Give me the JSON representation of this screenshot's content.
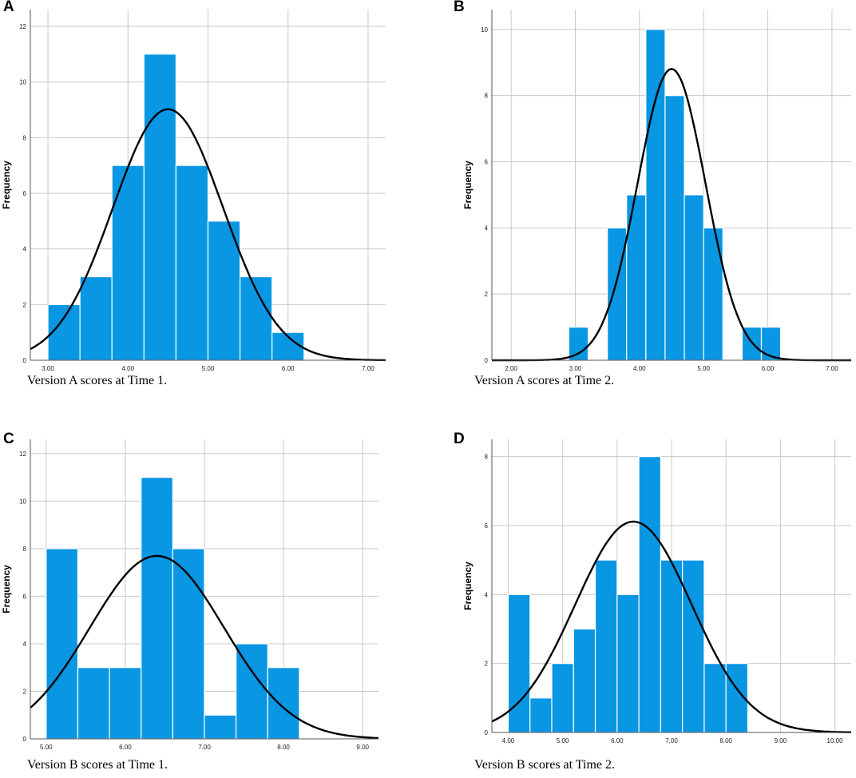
{
  "chart_data": [
    {
      "type": "bar",
      "panel_label": "A",
      "caption": "Version A scores at Time 1.",
      "ylabel": "Frequency",
      "xlabel": "",
      "bin_width": 0.4,
      "x_bin_starts": [
        3.0,
        3.4,
        3.8,
        4.2,
        4.6,
        5.0,
        5.4,
        5.8
      ],
      "values": [
        2,
        3,
        7,
        11,
        7,
        5,
        3,
        1
      ],
      "xlim": [
        2.78,
        7.22
      ],
      "ylim": [
        0,
        12.6
      ],
      "xticks": [
        3,
        4,
        5,
        6,
        7
      ],
      "xtick_labels": [
        "3.00",
        "4.00",
        "5.00",
        "6.00",
        "7.00"
      ],
      "yticks": [
        0,
        2,
        4,
        6,
        8,
        10,
        12
      ],
      "ytick_labels": [
        "0",
        "2",
        "4",
        "6",
        "8",
        "10",
        "12"
      ],
      "normal_curve": {
        "mean": 4.5,
        "sd": 0.69,
        "n": 39
      }
    },
    {
      "type": "bar",
      "panel_label": "B",
      "caption": "Version A scores at Time 2.",
      "ylabel": "Frequency",
      "xlabel": "",
      "bin_width": 0.3,
      "x_bin_starts": [
        2.9,
        3.2,
        3.5,
        3.8,
        4.1,
        4.4,
        4.7,
        5.0,
        5.3,
        5.6,
        5.9,
        6.2
      ],
      "values": [
        1,
        0,
        4,
        5,
        10,
        8,
        5,
        4,
        0,
        1,
        1,
        0
      ],
      "xlim": [
        1.7,
        7.3
      ],
      "ylim": [
        0,
        10.6
      ],
      "xticks": [
        2,
        3,
        4,
        5,
        6,
        7
      ],
      "xtick_labels": [
        "2.00",
        "3.00",
        "4.00",
        "5.00",
        "6.00",
        "7.00"
      ],
      "yticks": [
        0,
        2,
        4,
        6,
        8,
        10
      ],
      "ytick_labels": [
        "0",
        "2",
        "4",
        "6",
        "8",
        "10"
      ],
      "normal_curve": {
        "mean": 4.5,
        "sd": 0.53,
        "n": 39
      }
    },
    {
      "type": "bar",
      "panel_label": "C",
      "caption": "Version B scores at Time 1.",
      "ylabel": "Frequency",
      "xlabel": "",
      "bin_width": 0.4,
      "x_bin_starts": [
        5.0,
        5.4,
        5.8,
        6.2,
        6.6,
        7.0,
        7.4,
        7.8
      ],
      "values": [
        8,
        3,
        3,
        11,
        8,
        1,
        4,
        3
      ],
      "xlim": [
        4.8,
        9.2
      ],
      "ylim": [
        0,
        12.6
      ],
      "xticks": [
        5,
        6,
        7,
        8,
        9
      ],
      "xtick_labels": [
        "5.00",
        "6.00",
        "7.00",
        "8.00",
        "9.00"
      ],
      "yticks": [
        0,
        2,
        4,
        6,
        8,
        10,
        12
      ],
      "ytick_labels": [
        "0",
        "2",
        "4",
        "6",
        "8",
        "10",
        "12"
      ],
      "normal_curve": {
        "mean": 6.4,
        "sd": 0.85,
        "n": 41
      }
    },
    {
      "type": "bar",
      "panel_label": "D",
      "caption": "Version B scores at Time 2.",
      "ylabel": "Frequency",
      "xlabel": "",
      "bin_width": 0.4,
      "x_bin_starts": [
        4.0,
        4.4,
        4.8,
        5.2,
        5.6,
        6.0,
        6.4,
        6.8,
        7.2,
        7.6,
        8.0
      ],
      "values": [
        4,
        1,
        2,
        3,
        5,
        4,
        8,
        5,
        5,
        2,
        2
      ],
      "xlim": [
        3.7,
        10.3
      ],
      "ylim": [
        0,
        8.5
      ],
      "xticks": [
        4,
        5,
        6,
        7,
        8,
        9,
        10
      ],
      "xtick_labels": [
        "4.00",
        "5.00",
        "6.00",
        "7.00",
        "8.00",
        "9.00",
        "10.00"
      ],
      "yticks": [
        0,
        2,
        4,
        6,
        8
      ],
      "ytick_labels": [
        "0",
        "2",
        "4",
        "6",
        "8"
      ],
      "normal_curve": {
        "mean": 6.3,
        "sd": 1.07,
        "n": 41
      }
    }
  ],
  "colors": {
    "bar_fill": "#0996e3",
    "bar_stroke": "#ffffff",
    "grid": "#c8c8c8",
    "curve": "#000000",
    "axis": "#555555"
  }
}
